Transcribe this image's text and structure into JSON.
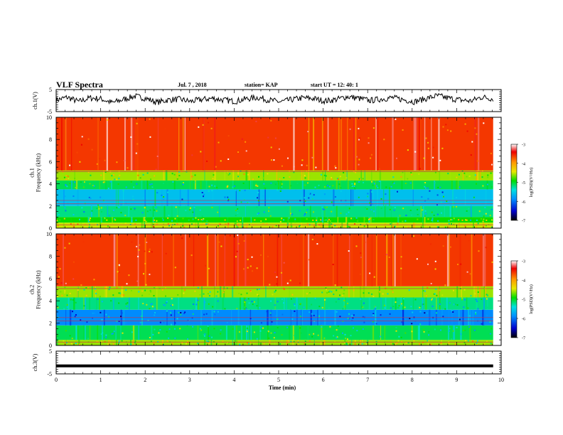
{
  "header": {
    "title": "VLF Spectra",
    "date": "Jul. 7 , 2018",
    "station": "station= KAP",
    "start": "start  UT =   12: 40: 1"
  },
  "chart_data": {
    "type": "heatmap",
    "title": "VLF Spectra",
    "xlabel": "Time (min)",
    "xlim": [
      0,
      10
    ],
    "x_ticks": [
      "0",
      "1",
      "2",
      "3",
      "4",
      "5",
      "6",
      "7",
      "8",
      "9",
      "10"
    ],
    "panels": [
      {
        "id": "ch1-waveform",
        "kind": "line",
        "ylabel": "ch.1(V)",
        "ylim": [
          -5,
          5
        ],
        "y_ticks": [
          "5",
          "-5"
        ],
        "approx_values": [
          0.2,
          1.5,
          -0.5,
          1.2,
          0.8,
          -1.0,
          0.5,
          2.0,
          1.0,
          -0.8,
          0.3,
          0.6,
          -0.4,
          0.5,
          1.0,
          0.2,
          -0.3,
          0.8,
          1.4,
          0.2,
          -0.6,
          0.4,
          1.2,
          0.9,
          -0.2,
          0.5,
          1.8,
          1.0,
          0.0,
          0.7,
          1.3,
          0.4,
          -0.5,
          0.9,
          2.2,
          1.1,
          0.3,
          -0.2,
          1.6,
          0.8
        ]
      },
      {
        "id": "ch1-spectrogram",
        "kind": "heatmap",
        "ylabel": "ch.1\nFrequency (kHz)",
        "ylim": [
          0,
          10
        ],
        "y_ticks": [
          "0",
          "2",
          "4",
          "6",
          "8",
          "10"
        ],
        "bands_log_psd": [
          {
            "from_khz": 0.0,
            "to_khz": 0.5,
            "value": -4.5
          },
          {
            "from_khz": 0.5,
            "to_khz": 1.0,
            "value": -4.9
          },
          {
            "from_khz": 1.0,
            "to_khz": 2.0,
            "value": -5.2
          },
          {
            "from_khz": 2.0,
            "to_khz": 3.5,
            "value": -5.6
          },
          {
            "from_khz": 3.5,
            "to_khz": 4.3,
            "value": -5.1
          },
          {
            "from_khz": 4.3,
            "to_khz": 5.2,
            "value": -4.6
          },
          {
            "from_khz": 5.2,
            "to_khz": 10.0,
            "value": -3.6
          }
        ],
        "colorbar": {
          "label": "log(PSD)(V²/Hz)",
          "range": [
            -7,
            -3
          ],
          "ticks": [
            "-3",
            "-4",
            "-5",
            "-6",
            "-7"
          ]
        }
      },
      {
        "id": "ch2-spectrogram",
        "kind": "heatmap",
        "ylabel": "ch.2\nFrequency (kHz)",
        "ylim": [
          0,
          10
        ],
        "y_ticks": [
          "0",
          "2",
          "4",
          "6",
          "8",
          "10"
        ],
        "bands_log_psd": [
          {
            "from_khz": 0.0,
            "to_khz": 0.5,
            "value": -4.6
          },
          {
            "from_khz": 0.5,
            "to_khz": 1.8,
            "value": -5.1
          },
          {
            "from_khz": 1.8,
            "to_khz": 3.2,
            "value": -5.9
          },
          {
            "from_khz": 3.2,
            "to_khz": 4.3,
            "value": -5.2
          },
          {
            "from_khz": 4.3,
            "to_khz": 5.3,
            "value": -4.6
          },
          {
            "from_khz": 5.3,
            "to_khz": 10.0,
            "value": -3.6
          }
        ],
        "colorbar": {
          "label": "log(PSD)(V²/Hz)",
          "range": [
            -7,
            -3
          ],
          "ticks": [
            "-3",
            "-4",
            "-5",
            "-6",
            "-7"
          ]
        }
      },
      {
        "id": "ch3-waveform",
        "kind": "line",
        "ylabel": "ch.3(V)",
        "ylim": [
          -5,
          5
        ],
        "y_ticks": [
          "5",
          "-5"
        ],
        "constant_value": -1.5
      }
    ],
    "colors": {
      "line": "#000000",
      "colormap": [
        "#000000",
        "#0000cc",
        "#0090ff",
        "#00e0e0",
        "#00dd00",
        "#e8e800",
        "#ff9900",
        "#ee0000",
        "#ffffff"
      ]
    }
  }
}
